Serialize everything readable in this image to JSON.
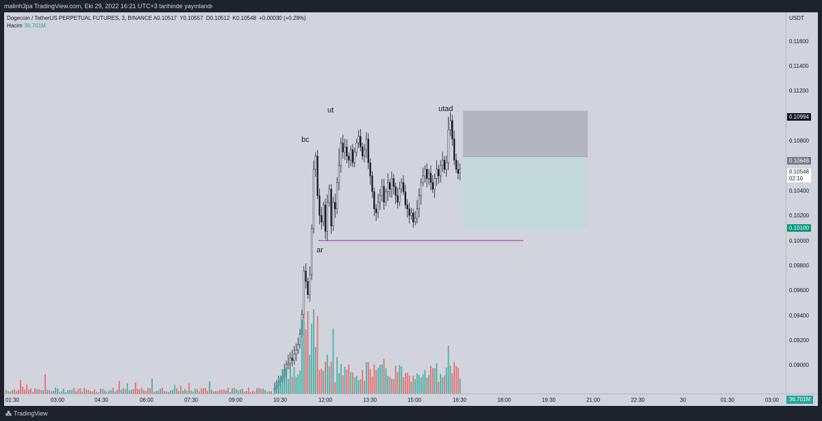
{
  "header": {
    "text": "malinh3pa TradingView.com, Eki 29, 2022 16:21 UTC+3 tarihinde yayınlandı"
  },
  "legend": {
    "title": "Dogecoin / TetherUS PERPETUAL FUTURES, 3, BINANCE",
    "open": "A0.10517",
    "high": "Y0.10557",
    "low": "D0.10512",
    "close": "K0.10548",
    "change": "+0.00030 (+0.29%)",
    "volume_label": "Hacim",
    "volume_value": "36.701M"
  },
  "price_axis": {
    "unit": "USDT",
    "ticks": [
      "0.11600",
      "0.11400",
      "0.11200",
      "0.10800",
      "0.10400",
      "0.10200",
      "0.10000",
      "0.09800",
      "0.09600",
      "0.09400",
      "0.09200",
      "0.09000"
    ],
    "tags": {
      "target": "0.10994",
      "entry": "0.10646",
      "last": "0.10548",
      "countdown": "02:10",
      "stop": "0.10100"
    },
    "volume_tag": "36.701M"
  },
  "time_axis": {
    "ticks": [
      "01:30",
      "03:00",
      "04:30",
      "06:00",
      "07:30",
      "09:00",
      "10:30",
      "12:00",
      "13:30",
      "15:00",
      "16:30",
      "18:00",
      "19:30",
      "21:00",
      "22:30",
      "30",
      "01:30",
      "03:00"
    ]
  },
  "annotations": {
    "bc": "bc",
    "ut": "ut",
    "utad": "utad",
    "ar": "ar"
  },
  "footer": {
    "brand": "TradingView"
  },
  "colors": {
    "up": "#26a69a",
    "down": "#ef5350",
    "candle": "#131722",
    "bg": "#d1d4dc",
    "support_line": "#9c27b0"
  },
  "chart_data": {
    "type": "candlestick",
    "symbol": "Dogecoin / TetherUS PERPETUAL FUTURES",
    "interval": "3",
    "exchange": "BINANCE",
    "ylim": [
      0.0885,
      0.1174
    ],
    "position": {
      "target": 0.10994,
      "entry": 0.10646,
      "stop": 0.101
    },
    "support_level": 0.1001,
    "closes": [
      0.0889,
      0.0891,
      0.0894,
      0.0896,
      0.0898,
      0.0903,
      0.0907,
      0.0908,
      0.0912,
      0.091,
      0.0915,
      0.0918,
      0.0922,
      0.093,
      0.0945,
      0.0978,
      0.097,
      0.096,
      0.0975,
      0.101,
      0.1055,
      0.1065,
      0.1035,
      0.102,
      0.1015,
      0.1028,
      0.1008,
      0.103,
      0.104,
      0.1012,
      0.103,
      0.1025,
      0.1045,
      0.1058,
      0.1075,
      0.1068,
      0.1072,
      0.1065,
      0.1062,
      0.107,
      0.106,
      0.1068,
      0.1075,
      0.108,
      0.1072,
      0.1065,
      0.107,
      0.1078,
      0.106,
      0.105,
      0.1038,
      0.1025,
      0.1022,
      0.103,
      0.1035,
      0.1042,
      0.103,
      0.1038,
      0.1045,
      0.104,
      0.1048,
      0.1042,
      0.1035,
      0.103,
      0.104,
      0.1045,
      0.1038,
      0.1028,
      0.1025,
      0.102,
      0.1022,
      0.1015,
      0.1018,
      0.1025,
      0.1035,
      0.1045,
      0.105,
      0.1055,
      0.1048,
      0.1052,
      0.1045,
      0.104,
      0.1048,
      0.1055,
      0.105,
      0.1058,
      0.1062,
      0.1055,
      0.106,
      0.1085,
      0.1092,
      0.1078,
      0.1062,
      0.1055,
      0.1052,
      0.1055
    ]
  }
}
